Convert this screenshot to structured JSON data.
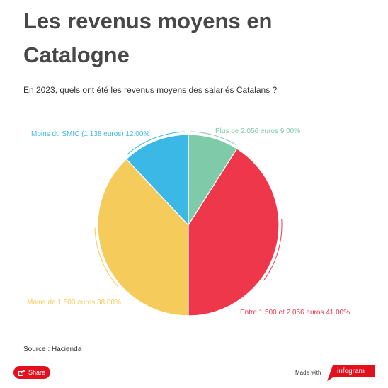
{
  "header": {
    "title": "Les revenus moyens en Catalogne",
    "subtitle": "En 2023, quels ont été les revenus moyens des salariés Catalans ?"
  },
  "chart_data": {
    "type": "pie",
    "title": "Les revenus moyens en Catalogne",
    "subtitle": "En 2023, quels ont été les revenus moyens des salariés Catalans ?",
    "start_angle_deg": 0,
    "direction": "clockwise",
    "slices": [
      {
        "label": "Plus de 2.056 euros 9.00%",
        "name": "Plus de 2.056 euros",
        "value": 9.0,
        "color": "#7fcaa9"
      },
      {
        "label": "Entre 1.500 et 2.056 euros 41.00%",
        "name": "Entre 1.500 et 2.056 euros",
        "value": 41.0,
        "color": "#ef374b"
      },
      {
        "label": "Moins de 1.500 euros 38.00%",
        "name": "Moins de 1.500 euros",
        "value": 38.0,
        "color": "#f5cb5c"
      },
      {
        "label": "Moins du SMIC (1.138 euros) 12.00%",
        "name": "Moins du SMIC (1.138 euros)",
        "value": 12.0,
        "color": "#3cb8e6"
      }
    ]
  },
  "footer": {
    "source": "Source : Hacienda",
    "share_label": "Share",
    "made_with": "Made with",
    "brand": "infogram",
    "brand_color": "#e3101e"
  }
}
